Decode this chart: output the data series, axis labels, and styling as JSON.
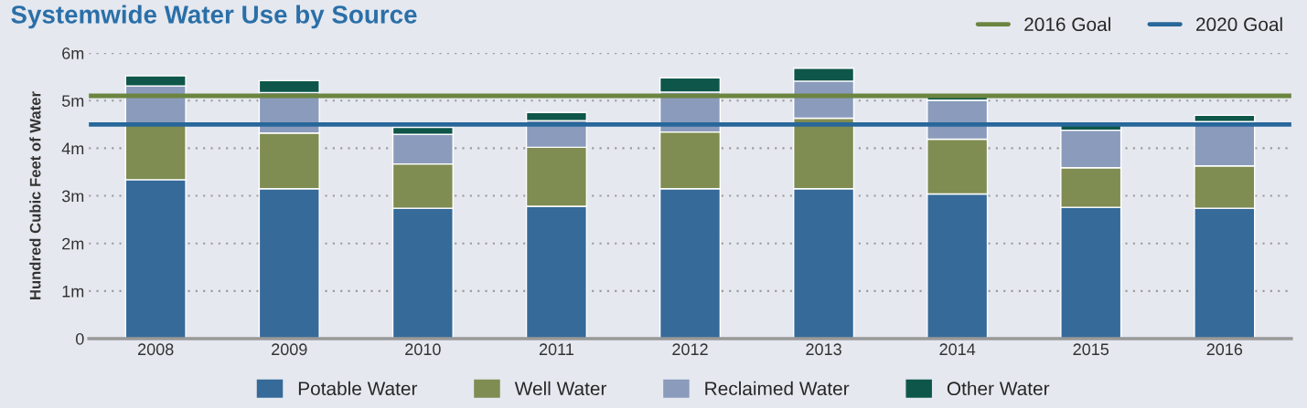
{
  "chart_data": {
    "type": "bar",
    "title": "Systemwide Water Use by Source",
    "ylabel": "Hundred Cubic Feet of Water",
    "categories": [
      "2008",
      "2009",
      "2010",
      "2011",
      "2012",
      "2013",
      "2014",
      "2015",
      "2016"
    ],
    "stacked": true,
    "series": [
      {
        "name": "Potable Water",
        "color": "#356a99",
        "values": [
          3.34,
          3.15,
          2.74,
          2.78,
          3.15,
          3.15,
          3.04,
          2.76,
          2.74
        ]
      },
      {
        "name": "Well Water",
        "color": "#7f8c52",
        "values": [
          1.16,
          1.17,
          0.93,
          1.24,
          1.19,
          1.48,
          1.15,
          0.83,
          0.89
        ]
      },
      {
        "name": "Reclaimed Water",
        "color": "#8b9bbc",
        "values": [
          0.81,
          0.85,
          0.62,
          0.56,
          0.84,
          0.78,
          0.82,
          0.79,
          0.93
        ]
      },
      {
        "name": "Other Water",
        "color": "#0e564a",
        "values": [
          0.21,
          0.25,
          0.15,
          0.17,
          0.3,
          0.27,
          0.07,
          0.1,
          0.13
        ]
      }
    ],
    "ref_lines": [
      {
        "axis": "y",
        "value": 5.1,
        "label": "2016 Goal",
        "color": "#6b8440"
      },
      {
        "axis": "y",
        "value": 4.5,
        "label": "2020 Goal",
        "color": "#27679a"
      }
    ],
    "ylim": [
      0,
      6
    ],
    "yticks": [
      0,
      {
        "value": 1,
        "label": "1m"
      },
      {
        "value": 2,
        "label": "2m"
      },
      {
        "value": 3,
        "label": "3m"
      },
      {
        "value": 4,
        "label": "4m"
      },
      {
        "value": 5,
        "label": "5m"
      },
      {
        "value": 6,
        "label": "6m"
      }
    ],
    "grid": "y",
    "legend": "bottom"
  }
}
